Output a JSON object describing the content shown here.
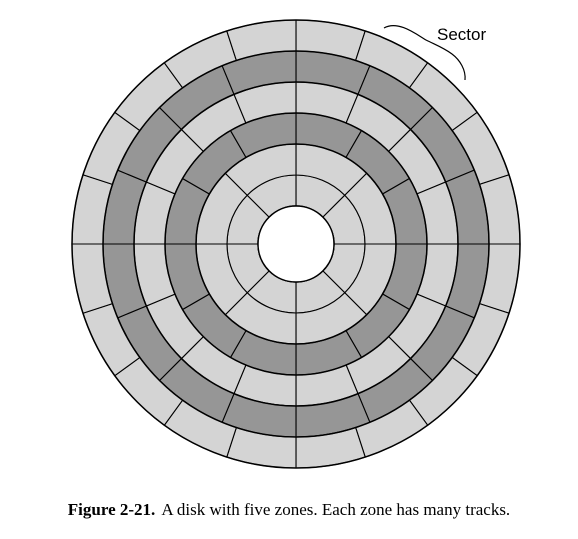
{
  "figure": {
    "label_text": "Sector",
    "caption_number": "Figure 2-21.",
    "caption_text": "A disk with five zones. Each zone has many tracks."
  },
  "disk": {
    "zones": [
      {
        "tracks": 2,
        "sectors": 8,
        "color": "#d4d4d4"
      },
      {
        "tracks": 1,
        "sectors": 12,
        "color": "#969696"
      },
      {
        "tracks": 1,
        "sectors": 16,
        "color": "#d4d4d4"
      },
      {
        "tracks": 1,
        "sectors": 16,
        "color": "#969696"
      },
      {
        "tracks": 1,
        "sectors": 20,
        "color": "#d4d4d4"
      }
    ],
    "hub_color": "#ffffff",
    "line_color": "#000000"
  }
}
